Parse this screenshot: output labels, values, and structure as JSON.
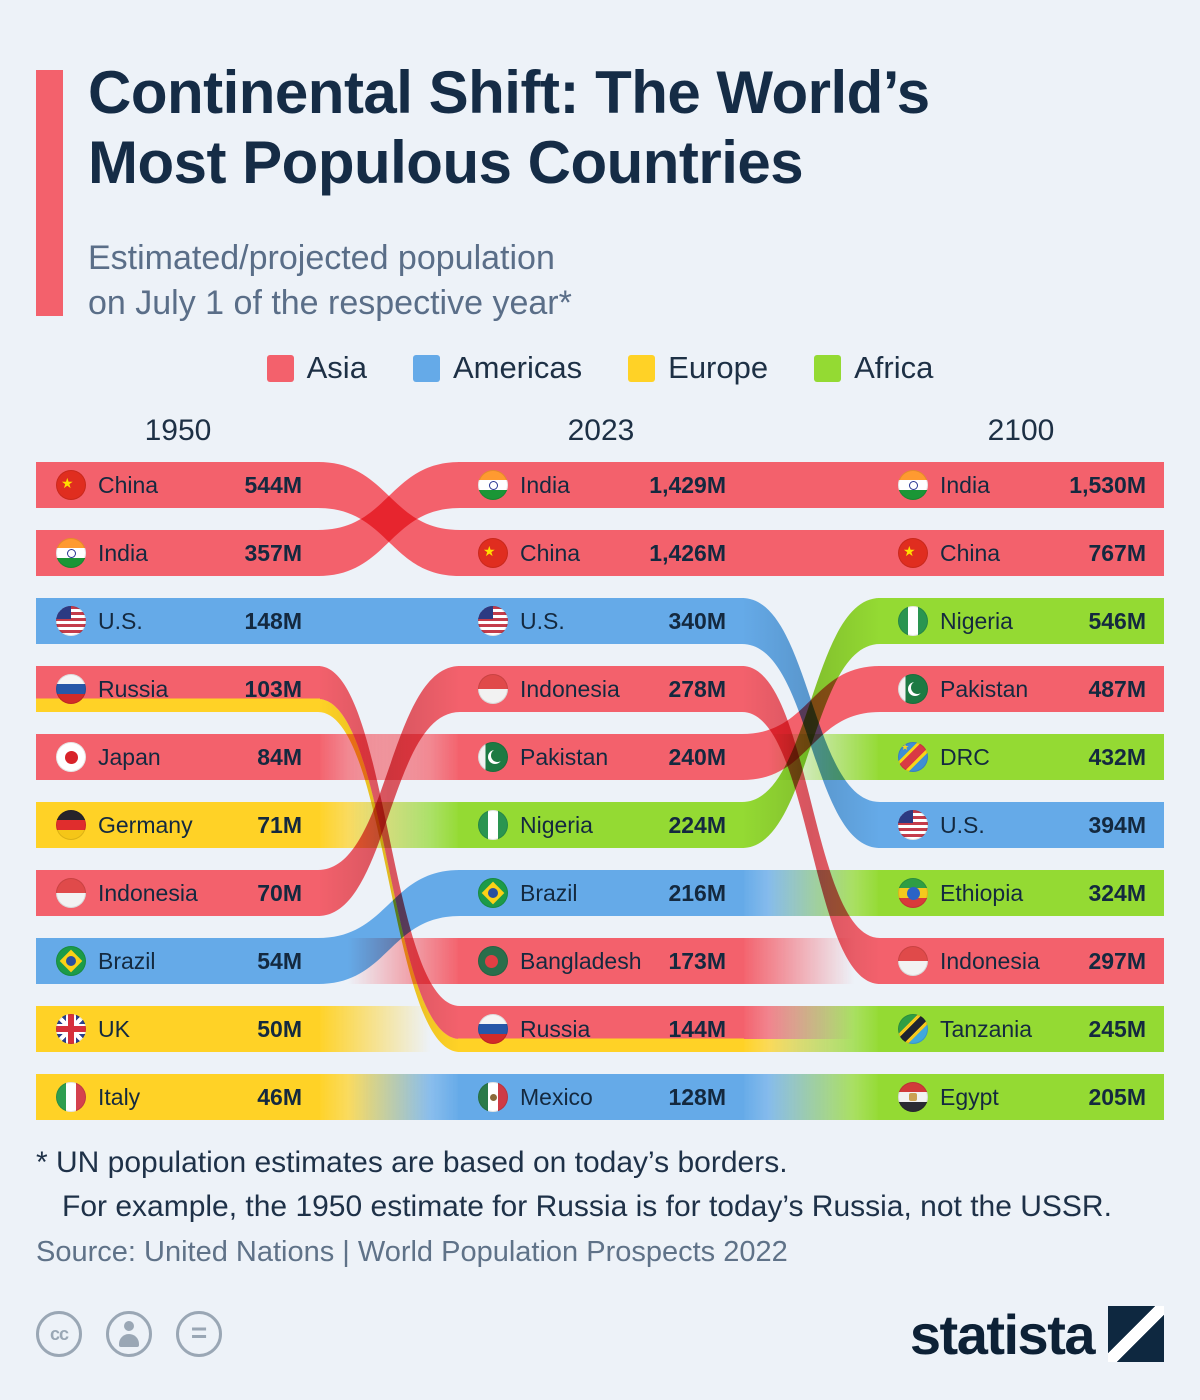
{
  "header": {
    "accent_color": "#f3616c",
    "title_line1": "Continental Shift: The World’s",
    "title_line2": "Most Populous Countries",
    "subtitle_line1": "Estimated/projected population",
    "subtitle_line2": "on July 1 of the respective year*"
  },
  "colors": {
    "asia": "#f3616c",
    "americas": "#65aae8",
    "europe": "#ffd226",
    "africa": "#94da33"
  },
  "legend": {
    "items": [
      {
        "label": "Asia",
        "key": "asia"
      },
      {
        "label": "Americas",
        "key": "americas"
      },
      {
        "label": "Europe",
        "key": "europe"
      },
      {
        "label": "Africa",
        "key": "africa"
      }
    ]
  },
  "chart_data": {
    "type": "alluvial-ranking-flow",
    "title": "Continental Shift: The World’s Most Populous Countries",
    "subtitle": "Estimated/projected population on July 1 of the respective year",
    "unit": "millions of people",
    "note": "Russia bands are drawn red+yellow (spans Asia and Europe); ribbons connect countries across years, fading bands mark countries entering/leaving the top 10",
    "columns": [
      {
        "year": "1950",
        "items": [
          {
            "country": "China",
            "label": "544M",
            "value_m": 544,
            "continent": "asia",
            "flag": "china"
          },
          {
            "country": "India",
            "label": "357M",
            "value_m": 357,
            "continent": "asia",
            "flag": "india"
          },
          {
            "country": "U.S.",
            "label": "148M",
            "value_m": 148,
            "continent": "americas",
            "flag": "us"
          },
          {
            "country": "Russia",
            "label": "103M",
            "value_m": 103,
            "continent": "europe-asia",
            "flag": "russia"
          },
          {
            "country": "Japan",
            "label": "84M",
            "value_m": 84,
            "continent": "asia",
            "flag": "japan"
          },
          {
            "country": "Germany",
            "label": "71M",
            "value_m": 71,
            "continent": "europe",
            "flag": "germany"
          },
          {
            "country": "Indonesia",
            "label": "70M",
            "value_m": 70,
            "continent": "asia",
            "flag": "indonesia"
          },
          {
            "country": "Brazil",
            "label": "54M",
            "value_m": 54,
            "continent": "americas",
            "flag": "brazil"
          },
          {
            "country": "UK",
            "label": "50M",
            "value_m": 50,
            "continent": "europe",
            "flag": "uk"
          },
          {
            "country": "Italy",
            "label": "46M",
            "value_m": 46,
            "continent": "europe",
            "flag": "italy"
          }
        ]
      },
      {
        "year": "2023",
        "items": [
          {
            "country": "India",
            "label": "1,429M",
            "value_m": 1429,
            "continent": "asia",
            "flag": "india"
          },
          {
            "country": "China",
            "label": "1,426M",
            "value_m": 1426,
            "continent": "asia",
            "flag": "china"
          },
          {
            "country": "U.S.",
            "label": "340M",
            "value_m": 340,
            "continent": "americas",
            "flag": "us"
          },
          {
            "country": "Indonesia",
            "label": "278M",
            "value_m": 278,
            "continent": "asia",
            "flag": "indonesia"
          },
          {
            "country": "Pakistan",
            "label": "240M",
            "value_m": 240,
            "continent": "asia",
            "flag": "pakistan"
          },
          {
            "country": "Nigeria",
            "label": "224M",
            "value_m": 224,
            "continent": "africa",
            "flag": "nigeria"
          },
          {
            "country": "Brazil",
            "label": "216M",
            "value_m": 216,
            "continent": "americas",
            "flag": "brazil"
          },
          {
            "country": "Bangladesh",
            "label": "173M",
            "value_m": 173,
            "continent": "asia",
            "flag": "bangladesh"
          },
          {
            "country": "Russia",
            "label": "144M",
            "value_m": 144,
            "continent": "europe-asia",
            "flag": "russia"
          },
          {
            "country": "Mexico",
            "label": "128M",
            "value_m": 128,
            "continent": "americas",
            "flag": "mexico"
          }
        ]
      },
      {
        "year": "2100",
        "items": [
          {
            "country": "India",
            "label": "1,530M",
            "value_m": 1530,
            "continent": "asia",
            "flag": "india"
          },
          {
            "country": "China",
            "label": "767M",
            "value_m": 767,
            "continent": "asia",
            "flag": "china"
          },
          {
            "country": "Nigeria",
            "label": "546M",
            "value_m": 546,
            "continent": "africa",
            "flag": "nigeria"
          },
          {
            "country": "Pakistan",
            "label": "487M",
            "value_m": 487,
            "continent": "asia",
            "flag": "pakistan"
          },
          {
            "country": "DRC",
            "label": "432M",
            "value_m": 432,
            "continent": "africa",
            "flag": "drc"
          },
          {
            "country": "U.S.",
            "label": "394M",
            "value_m": 394,
            "continent": "americas",
            "flag": "us"
          },
          {
            "country": "Ethiopia",
            "label": "324M",
            "value_m": 324,
            "continent": "africa",
            "flag": "ethiopia"
          },
          {
            "country": "Indonesia",
            "label": "297M",
            "value_m": 297,
            "continent": "asia",
            "flag": "indonesia"
          },
          {
            "country": "Tanzania",
            "label": "245M",
            "value_m": 245,
            "continent": "africa",
            "flag": "tanzania"
          },
          {
            "country": "Egypt",
            "label": "205M",
            "value_m": 205,
            "continent": "africa",
            "flag": "egypt"
          }
        ]
      }
    ]
  },
  "footnotes": {
    "line1": "* UN population estimates are based on today’s borders.",
    "line2": "For example, the 1950 estimate for Russia is for today’s Russia, not the USSR."
  },
  "source": "Source: United Nations | World Population Prospects 2022",
  "branding": {
    "logo_text": "statista"
  }
}
